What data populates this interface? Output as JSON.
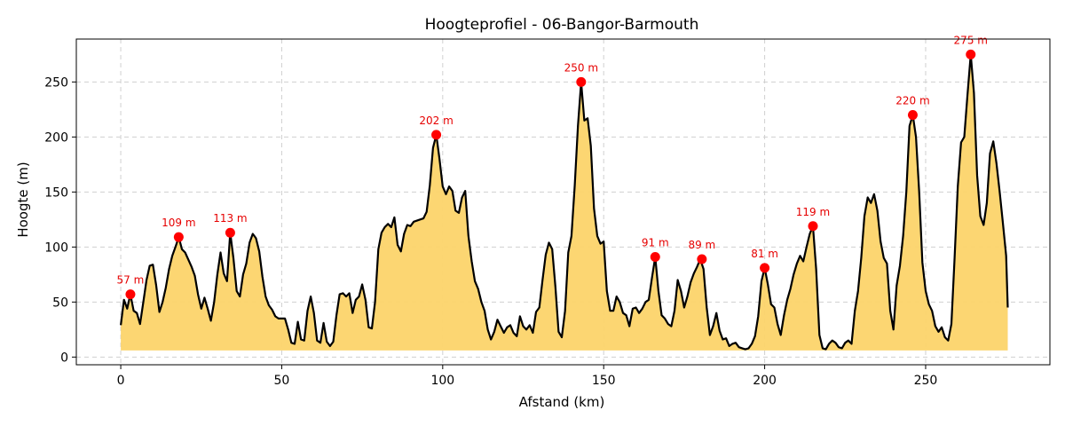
{
  "chart_data": {
    "type": "area",
    "title": "Hoogteprofiel - 06-Bangor-Barmouth",
    "xlabel": "Afstand (km)",
    "ylabel": "Hoogte (m)",
    "xlim": [
      -13.8,
      288.6
    ],
    "ylim": [
      -7,
      289
    ],
    "xticks": [
      0,
      50,
      100,
      150,
      200,
      250
    ],
    "yticks": [
      0,
      50,
      100,
      150,
      200,
      250
    ],
    "grid": true,
    "fill_color": "#fcd46a",
    "line_color": "#000000",
    "peak_color": "#ff0000",
    "fill_base": 6,
    "profile": [
      [
        0,
        29
      ],
      [
        1,
        52
      ],
      [
        2,
        44
      ],
      [
        3,
        57
      ],
      [
        4,
        42
      ],
      [
        5,
        40
      ],
      [
        6,
        30
      ],
      [
        7,
        50
      ],
      [
        8,
        70
      ],
      [
        9,
        83
      ],
      [
        10,
        84
      ],
      [
        11,
        65
      ],
      [
        12,
        41
      ],
      [
        13,
        50
      ],
      [
        14,
        63
      ],
      [
        15,
        80
      ],
      [
        16,
        92
      ],
      [
        17,
        100
      ],
      [
        18,
        109
      ],
      [
        19,
        98
      ],
      [
        20,
        95
      ],
      [
        22,
        82
      ],
      [
        23,
        74
      ],
      [
        24,
        57
      ],
      [
        25,
        44
      ],
      [
        26,
        54
      ],
      [
        27,
        44
      ],
      [
        28,
        33
      ],
      [
        29,
        50
      ],
      [
        30,
        75
      ],
      [
        31,
        95
      ],
      [
        32,
        76
      ],
      [
        33,
        69
      ],
      [
        34,
        113
      ],
      [
        35,
        90
      ],
      [
        36,
        60
      ],
      [
        37,
        55
      ],
      [
        38,
        75
      ],
      [
        39,
        85
      ],
      [
        40,
        104
      ],
      [
        41,
        112
      ],
      [
        42,
        108
      ],
      [
        43,
        96
      ],
      [
        44,
        73
      ],
      [
        45,
        55
      ],
      [
        46,
        47
      ],
      [
        47,
        43
      ],
      [
        48,
        37
      ],
      [
        49,
        35
      ],
      [
        51,
        35
      ],
      [
        52,
        25
      ],
      [
        53,
        13
      ],
      [
        54,
        12
      ],
      [
        55,
        32
      ],
      [
        56,
        16
      ],
      [
        57,
        15
      ],
      [
        58,
        42
      ],
      [
        59,
        55
      ],
      [
        60,
        40
      ],
      [
        61,
        15
      ],
      [
        62,
        13
      ],
      [
        63,
        31
      ],
      [
        64,
        14
      ],
      [
        65,
        10
      ],
      [
        66,
        14
      ],
      [
        67,
        38
      ],
      [
        68,
        57
      ],
      [
        69,
        58
      ],
      [
        70,
        55
      ],
      [
        71,
        58
      ],
      [
        72,
        40
      ],
      [
        73,
        52
      ],
      [
        74,
        55
      ],
      [
        75,
        66
      ],
      [
        76,
        52
      ],
      [
        77,
        27
      ],
      [
        78,
        26
      ],
      [
        79,
        50
      ],
      [
        80,
        98
      ],
      [
        81,
        113
      ],
      [
        82,
        118
      ],
      [
        83,
        121
      ],
      [
        84,
        118
      ],
      [
        85,
        127
      ],
      [
        86,
        102
      ],
      [
        87,
        96
      ],
      [
        88,
        112
      ],
      [
        89,
        120
      ],
      [
        90,
        119
      ],
      [
        91,
        123
      ],
      [
        92,
        124
      ],
      [
        94,
        126
      ],
      [
        95,
        132
      ],
      [
        96,
        156
      ],
      [
        97,
        190
      ],
      [
        98,
        202
      ],
      [
        99,
        180
      ],
      [
        100,
        155
      ],
      [
        101,
        148
      ],
      [
        102,
        155
      ],
      [
        103,
        151
      ],
      [
        104,
        133
      ],
      [
        105,
        131
      ],
      [
        106,
        145
      ],
      [
        107,
        151
      ],
      [
        108,
        110
      ],
      [
        109,
        87
      ],
      [
        110,
        69
      ],
      [
        111,
        62
      ],
      [
        112,
        50
      ],
      [
        113,
        42
      ],
      [
        114,
        25
      ],
      [
        115,
        16
      ],
      [
        116,
        23
      ],
      [
        117,
        34
      ],
      [
        118,
        28
      ],
      [
        119,
        22
      ],
      [
        120,
        27
      ],
      [
        121,
        29
      ],
      [
        122,
        22
      ],
      [
        123,
        19
      ],
      [
        124,
        37
      ],
      [
        125,
        28
      ],
      [
        126,
        25
      ],
      [
        127,
        29
      ],
      [
        128,
        22
      ],
      [
        129,
        41
      ],
      [
        130,
        45
      ],
      [
        131,
        70
      ],
      [
        132,
        93
      ],
      [
        133,
        104
      ],
      [
        134,
        98
      ],
      [
        135,
        64
      ],
      [
        136,
        23
      ],
      [
        137,
        18
      ],
      [
        138,
        42
      ],
      [
        139,
        95
      ],
      [
        140,
        110
      ],
      [
        141,
        156
      ],
      [
        142,
        210
      ],
      [
        143,
        250
      ],
      [
        144,
        215
      ],
      [
        145,
        217
      ],
      [
        146,
        192
      ],
      [
        147,
        135
      ],
      [
        148,
        110
      ],
      [
        149,
        103
      ],
      [
        150,
        105
      ],
      [
        151,
        60
      ],
      [
        152,
        42
      ],
      [
        153,
        42
      ],
      [
        154,
        55
      ],
      [
        155,
        50
      ],
      [
        156,
        40
      ],
      [
        157,
        38
      ],
      [
        158,
        28
      ],
      [
        159,
        44
      ],
      [
        160,
        45
      ],
      [
        161,
        40
      ],
      [
        162,
        44
      ],
      [
        163,
        50
      ],
      [
        164,
        52
      ],
      [
        165,
        72
      ],
      [
        166,
        91
      ],
      [
        167,
        60
      ],
      [
        168,
        38
      ],
      [
        169,
        35
      ],
      [
        170,
        30
      ],
      [
        171,
        28
      ],
      [
        172,
        42
      ],
      [
        173,
        70
      ],
      [
        174,
        60
      ],
      [
        175,
        45
      ],
      [
        176,
        55
      ],
      [
        177,
        68
      ],
      [
        178,
        76
      ],
      [
        179,
        82
      ],
      [
        180,
        89
      ],
      [
        181,
        80
      ],
      [
        182,
        45
      ],
      [
        183,
        20
      ],
      [
        184,
        28
      ],
      [
        185,
        40
      ],
      [
        186,
        24
      ],
      [
        187,
        16
      ],
      [
        188,
        17
      ],
      [
        189,
        10
      ],
      [
        190,
        12
      ],
      [
        191,
        13
      ],
      [
        192,
        9
      ],
      [
        193,
        8
      ],
      [
        194,
        7
      ],
      [
        195,
        8
      ],
      [
        196,
        12
      ],
      [
        197,
        19
      ],
      [
        198,
        37
      ],
      [
        199,
        69
      ],
      [
        200,
        81
      ],
      [
        201,
        66
      ],
      [
        202,
        48
      ],
      [
        203,
        45
      ],
      [
        204,
        30
      ],
      [
        205,
        20
      ],
      [
        206,
        38
      ],
      [
        207,
        52
      ],
      [
        208,
        62
      ],
      [
        209,
        75
      ],
      [
        210,
        85
      ],
      [
        211,
        92
      ],
      [
        212,
        87
      ],
      [
        213,
        100
      ],
      [
        214,
        112
      ],
      [
        215,
        119
      ],
      [
        216,
        80
      ],
      [
        217,
        20
      ],
      [
        218,
        8
      ],
      [
        219,
        7
      ],
      [
        220,
        12
      ],
      [
        221,
        15
      ],
      [
        222,
        13
      ],
      [
        223,
        9
      ],
      [
        224,
        8
      ],
      [
        225,
        13
      ],
      [
        226,
        15
      ],
      [
        227,
        12
      ],
      [
        228,
        42
      ],
      [
        229,
        60
      ],
      [
        230,
        90
      ],
      [
        231,
        128
      ],
      [
        232,
        145
      ],
      [
        233,
        140
      ],
      [
        234,
        148
      ],
      [
        235,
        133
      ],
      [
        236,
        105
      ],
      [
        237,
        90
      ],
      [
        238,
        85
      ],
      [
        239,
        42
      ],
      [
        240,
        25
      ],
      [
        241,
        65
      ],
      [
        242,
        83
      ],
      [
        243,
        110
      ],
      [
        244,
        150
      ],
      [
        245,
        210
      ],
      [
        246,
        220
      ],
      [
        247,
        200
      ],
      [
        248,
        150
      ],
      [
        249,
        86
      ],
      [
        250,
        60
      ],
      [
        251,
        48
      ],
      [
        252,
        42
      ],
      [
        253,
        28
      ],
      [
        254,
        23
      ],
      [
        255,
        27
      ],
      [
        256,
        18
      ],
      [
        257,
        15
      ],
      [
        258,
        30
      ],
      [
        259,
        90
      ],
      [
        260,
        155
      ],
      [
        261,
        195
      ],
      [
        262,
        200
      ],
      [
        263,
        238
      ],
      [
        264,
        275
      ],
      [
        265,
        240
      ],
      [
        266,
        165
      ],
      [
        267,
        128
      ],
      [
        268,
        120
      ],
      [
        269,
        140
      ],
      [
        270,
        185
      ],
      [
        271,
        196
      ],
      [
        272,
        176
      ],
      [
        273,
        150
      ],
      [
        274,
        122
      ],
      [
        275,
        92
      ],
      [
        275.5,
        45
      ]
    ],
    "peaks": [
      {
        "x": 3,
        "y": 57,
        "label": "57 m"
      },
      {
        "x": 18,
        "y": 109,
        "label": "109 m"
      },
      {
        "x": 34,
        "y": 113,
        "label": "113 m"
      },
      {
        "x": 98,
        "y": 202,
        "label": "202 m"
      },
      {
        "x": 143,
        "y": 250,
        "label": "250 m"
      },
      {
        "x": 166,
        "y": 91,
        "label": "91 m"
      },
      {
        "x": 180.5,
        "y": 89,
        "label": "89 m"
      },
      {
        "x": 200,
        "y": 81,
        "label": "81 m"
      },
      {
        "x": 215,
        "y": 119,
        "label": "119 m"
      },
      {
        "x": 246,
        "y": 220,
        "label": "220 m"
      },
      {
        "x": 264,
        "y": 275,
        "label": "275 m"
      }
    ]
  }
}
